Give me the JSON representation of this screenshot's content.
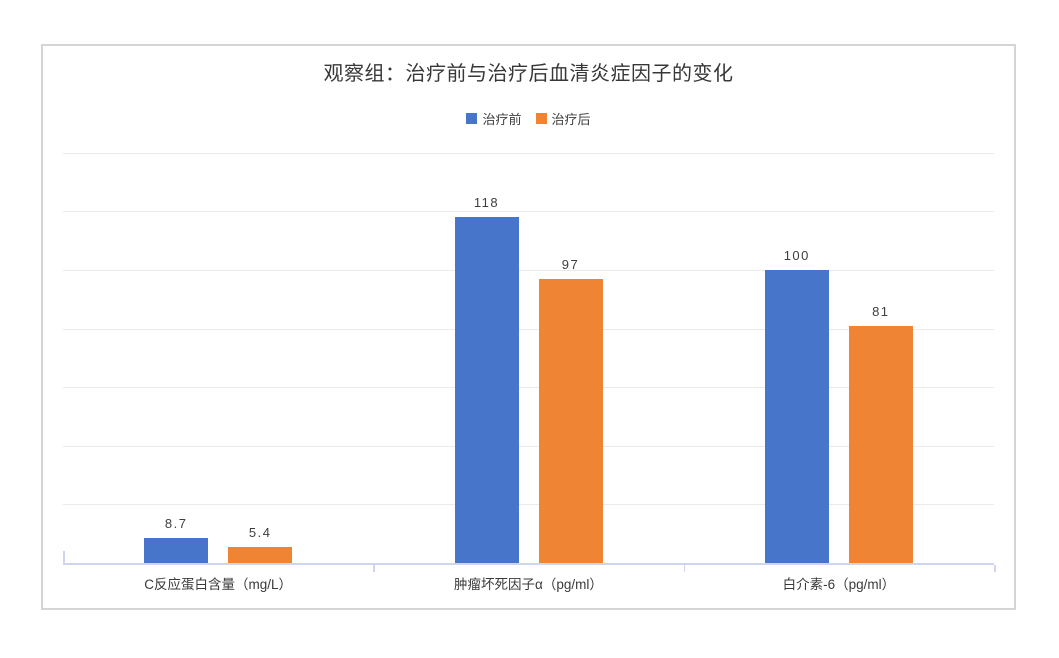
{
  "chart_data": {
    "type": "bar",
    "title": "观察组：治疗前与治疗后血清炎症因子的变化",
    "categories": [
      "C反应蛋白含量（mg/L）",
      "肿瘤坏死因子α（pg/ml）",
      "白介素-6（pg/ml）"
    ],
    "series": [
      {
        "name": "治疗前",
        "color": "#4675CA",
        "values": [
          8.7,
          118,
          100
        ],
        "labels": [
          "8.7",
          "118",
          "100"
        ]
      },
      {
        "name": "治疗后",
        "color": "#EE8434",
        "values": [
          5.4,
          97,
          81
        ],
        "labels": [
          "5.4",
          "97",
          "81"
        ]
      }
    ],
    "ylim": [
      0,
      140
    ],
    "gridline_step": 20,
    "grid": true,
    "legend_position": "top",
    "y_axis_labels_visible": false,
    "xlabel": "",
    "ylabel": ""
  },
  "style": {
    "bar_blue": "#4675CA",
    "bar_orange": "#EE8434",
    "gridline_color": "#EBEBEB",
    "axis_color": "#CDD6EE",
    "frame_border_color": "#D5D5D5",
    "title_color": "#373737",
    "label_color": "#3E3E3E"
  }
}
